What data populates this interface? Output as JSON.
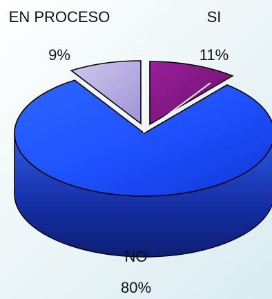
{
  "chart_data": {
    "type": "pie",
    "title": "",
    "slices": [
      {
        "label": "SI",
        "value": 11,
        "percent_label": "11%",
        "color": "#8b1a8b"
      },
      {
        "label": "NO",
        "value": 80,
        "percent_label": "80%",
        "color": "#1f52ff"
      },
      {
        "label": "EN PROCESO",
        "value": 9,
        "percent_label": "9%",
        "color": "#a9a2d8"
      }
    ],
    "legend": "none",
    "grid": false,
    "style": "3d"
  }
}
